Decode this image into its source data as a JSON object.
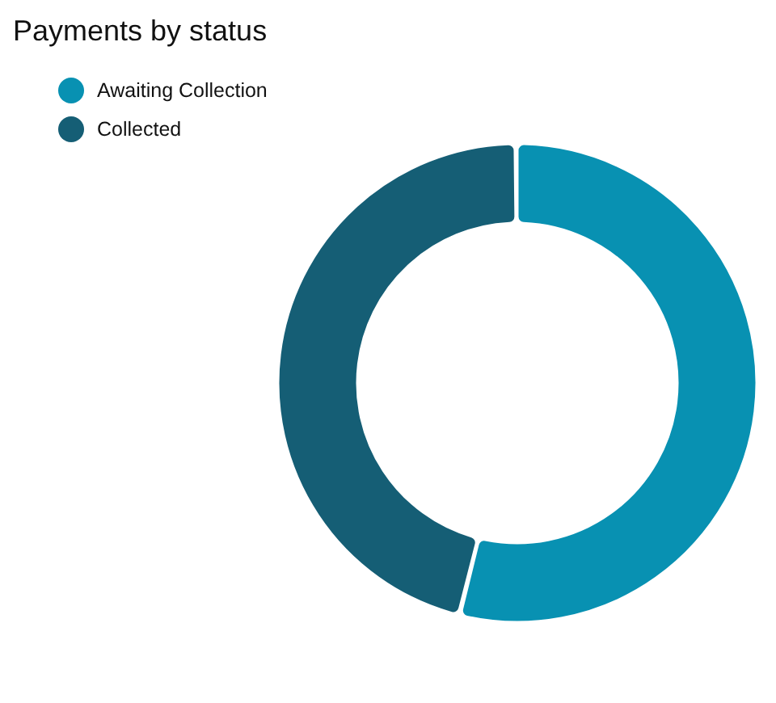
{
  "chart_data": {
    "type": "donut",
    "title": "Payments by status",
    "categories": [
      "Awaiting Collection",
      "Collected"
    ],
    "values": [
      54,
      46
    ],
    "colors": [
      "#0891b2",
      "#155e75"
    ],
    "legend": "top left"
  }
}
